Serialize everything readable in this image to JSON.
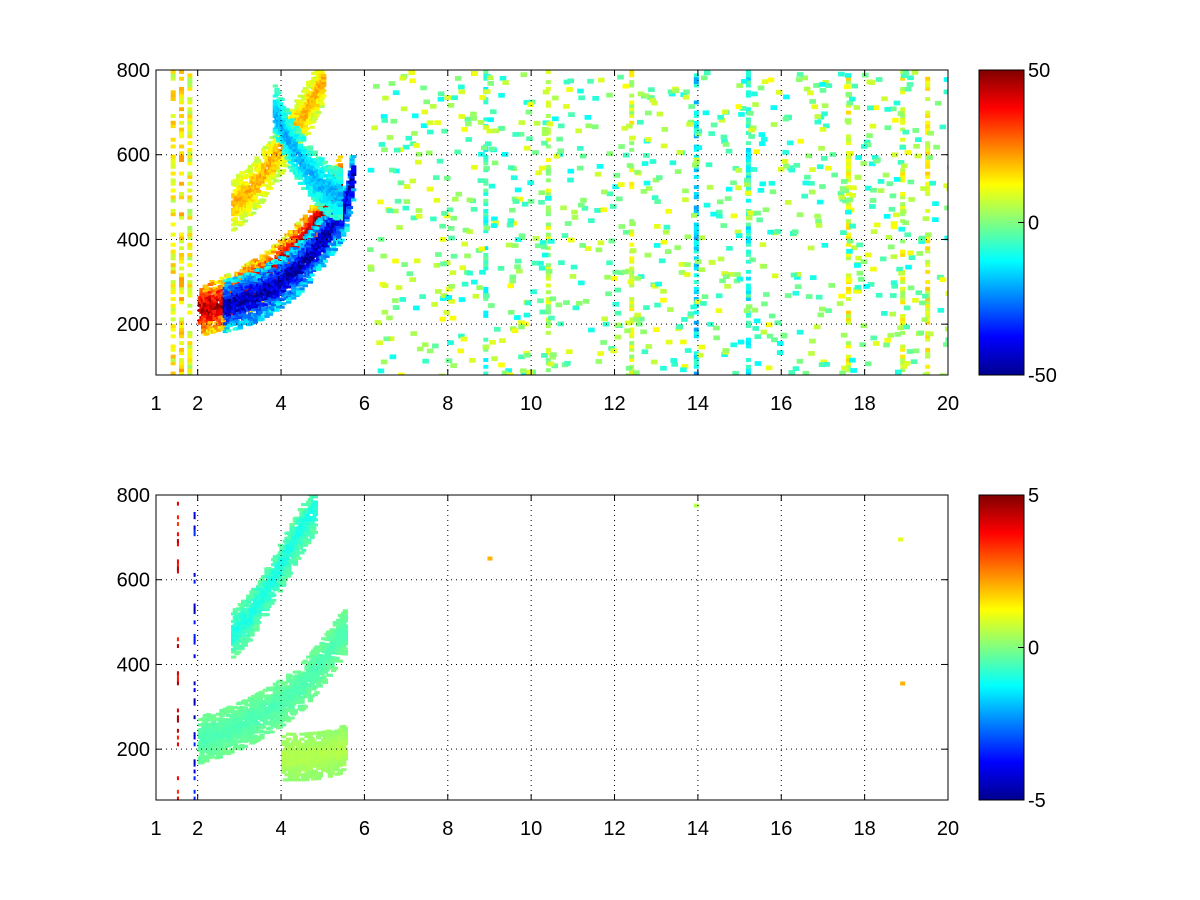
{
  "chart_data": [
    {
      "type": "heatmap",
      "title": "",
      "xlabel": "",
      "ylabel": "",
      "xlim": [
        1,
        20
      ],
      "ylim": [
        80,
        800
      ],
      "xticks": [
        1,
        2,
        4,
        6,
        8,
        10,
        12,
        14,
        16,
        18,
        20
      ],
      "xtick_labels": [
        "1",
        "2",
        "4",
        "6",
        "8",
        "10",
        "12",
        "14",
        "16",
        "18",
        "20"
      ],
      "yticks": [
        200,
        400,
        600,
        800
      ],
      "ytick_labels": [
        "200",
        "400",
        "600",
        "800"
      ],
      "grid": true,
      "colormap": "jet",
      "clim": [
        -50,
        50
      ],
      "colorbar_ticks": [
        -50,
        0,
        50
      ],
      "colorbar_tick_labels": [
        "-50",
        "0",
        "50"
      ],
      "features": [
        {
          "kind": "band",
          "x": [
            2.0,
            2.5,
            3.0,
            3.5,
            4.0,
            4.5,
            5.0,
            5.4
          ],
          "y": [
            230,
            245,
            270,
            300,
            340,
            390,
            460,
            540
          ],
          "value": 45
        },
        {
          "kind": "band",
          "x": [
            2.6,
            3.0,
            3.5,
            4.0,
            4.5,
            5.0,
            5.5,
            5.7
          ],
          "y": [
            240,
            250,
            270,
            300,
            340,
            400,
            470,
            560
          ],
          "value": -45
        },
        {
          "kind": "band",
          "x": [
            2.8,
            3.2,
            3.6,
            4.0,
            4.5,
            5.0
          ],
          "y": [
            480,
            510,
            560,
            620,
            690,
            780
          ],
          "value": 20
        },
        {
          "kind": "band",
          "x": [
            3.8,
            4.2,
            4.6,
            5.0,
            5.4
          ],
          "y": [
            700,
            620,
            560,
            520,
            500
          ],
          "value": -20
        }
      ],
      "stripes": [
        {
          "x": 1.4,
          "value": 12
        },
        {
          "x": 1.6,
          "value": 15
        },
        {
          "x": 1.8,
          "value": 10
        },
        {
          "x": 8.9,
          "value": -8
        },
        {
          "x": 10.4,
          "value": 6
        },
        {
          "x": 12.4,
          "value": 8
        },
        {
          "x": 13.95,
          "value": -14
        },
        {
          "x": 15.2,
          "value": -10
        },
        {
          "x": 17.6,
          "value": 10
        },
        {
          "x": 18.9,
          "value": 9
        },
        {
          "x": 19.5,
          "value": 12
        }
      ],
      "noise_region": {
        "x": [
          6,
          20
        ],
        "y": [
          80,
          800
        ]
      }
    },
    {
      "type": "heatmap",
      "title": "",
      "xlabel": "",
      "ylabel": "",
      "xlim": [
        1,
        20
      ],
      "ylim": [
        80,
        800
      ],
      "xticks": [
        1,
        2,
        4,
        6,
        8,
        10,
        12,
        14,
        16,
        18,
        20
      ],
      "xtick_labels": [
        "1",
        "2",
        "4",
        "6",
        "8",
        "10",
        "12",
        "14",
        "16",
        "18",
        "20"
      ],
      "yticks": [
        200,
        400,
        600,
        800
      ],
      "ytick_labels": [
        "200",
        "400",
        "600",
        "800"
      ],
      "grid": true,
      "colormap": "jet",
      "clim": [
        -5,
        5
      ],
      "colorbar_ticks": [
        -5,
        0,
        5
      ],
      "colorbar_tick_labels": [
        "-5",
        "0",
        "5"
      ],
      "features": [
        {
          "kind": "band",
          "x": [
            2.0,
            2.5,
            3.0,
            3.5,
            4.0,
            4.5,
            5.0,
            5.5
          ],
          "y": [
            220,
            235,
            255,
            280,
            310,
            350,
            410,
            480
          ],
          "value": -0.5
        },
        {
          "kind": "band",
          "x": [
            2.8,
            3.2,
            3.6,
            4.0,
            4.4,
            4.8
          ],
          "y": [
            470,
            510,
            570,
            640,
            710,
            770
          ],
          "value": -1
        },
        {
          "kind": "band",
          "x": [
            4.0,
            4.5,
            5.0,
            5.5
          ],
          "y": [
            180,
            180,
            185,
            200
          ],
          "value": 0.5
        }
      ],
      "stripes": [
        {
          "x": 1.55,
          "value": 4
        },
        {
          "x": 1.95,
          "value": -4
        }
      ],
      "isolated_points": [
        {
          "x": 13.95,
          "y": 775,
          "value": 0.5
        },
        {
          "x": 18.85,
          "y": 695,
          "value": 1
        },
        {
          "x": 18.9,
          "y": 355,
          "value": 2
        },
        {
          "x": 9.0,
          "y": 650,
          "value": 2
        }
      ]
    }
  ]
}
